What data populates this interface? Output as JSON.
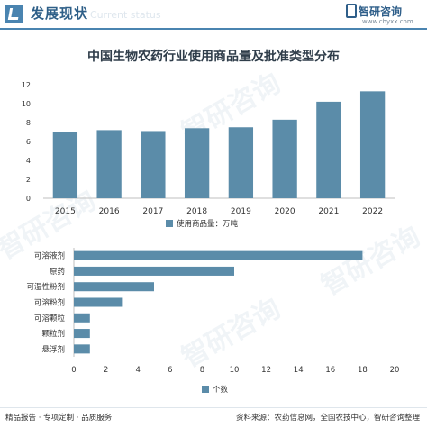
{
  "header": {
    "section_title": "发展现状",
    "section_subtitle": "Current status",
    "brand_name": "智研咨询",
    "brand_url": "www.chyxx.com"
  },
  "colors": {
    "bar": "#5b8ca9",
    "axis_text": "#333333",
    "accent": "#4a84b0"
  },
  "chart_title": "中国生物农药行业使用商品量及批准类型分布",
  "watermark_text": "智研咨询",
  "chart_data": [
    {
      "type": "bar",
      "categories": [
        "2015",
        "2016",
        "2017",
        "2018",
        "2019",
        "2020",
        "2021",
        "2022"
      ],
      "series": [
        {
          "name": "使用商品量：万吨",
          "values": [
            7.0,
            7.2,
            7.1,
            7.4,
            7.5,
            8.3,
            10.2,
            11.3
          ]
        }
      ],
      "ylim": [
        0,
        12
      ],
      "yticks": [
        "0",
        "2",
        "4",
        "6",
        "8",
        "10",
        "12"
      ],
      "grid": false,
      "legend": "bottom"
    },
    {
      "type": "bar",
      "orientation": "horizontal",
      "categories": [
        "可溶液剂",
        "原药",
        "可湿性粉剂",
        "可溶粉剂",
        "可溶颗粒",
        "颗粒剂",
        "悬浮剂"
      ],
      "series": [
        {
          "name": "个数",
          "values": [
            18,
            10,
            5,
            3,
            1,
            1,
            1
          ]
        }
      ],
      "xlim": [
        0,
        20
      ],
      "xticks": [
        "0",
        "2",
        "4",
        "6",
        "8",
        "10",
        "12",
        "14",
        "16",
        "18",
        "20"
      ],
      "grid": false,
      "legend": "bottom"
    }
  ],
  "footer": {
    "left": "精品报告 · 专项定制 · 品质服务",
    "right": "资料来源：农药信息网，全国农技中心，智研咨询整理"
  }
}
